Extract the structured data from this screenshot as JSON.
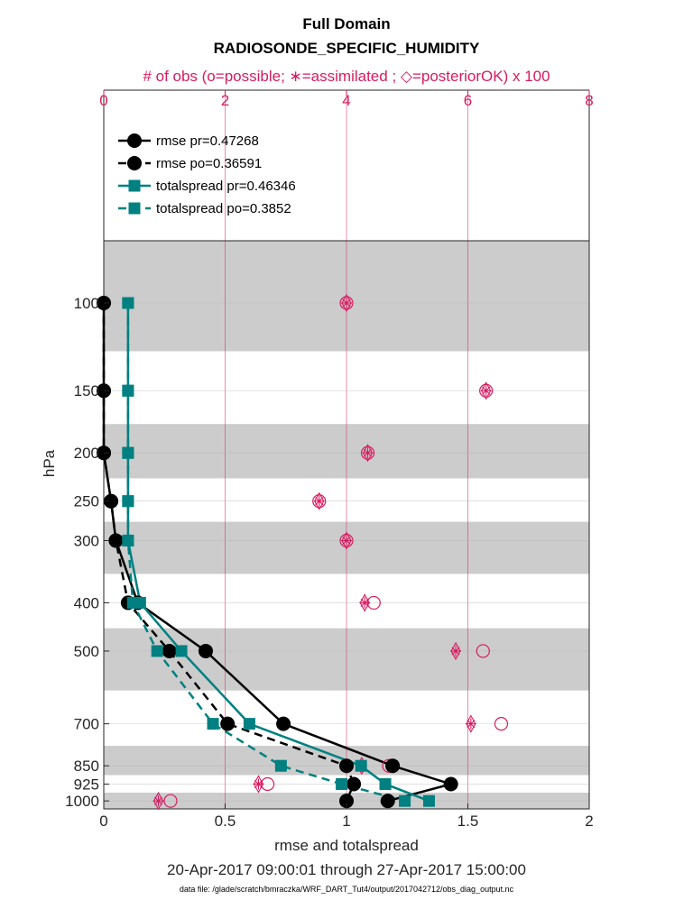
{
  "chart_data": {
    "type": "line",
    "title": "Full Domain",
    "subtitle": "RADIOSONDE_SPECIFIC_HUMIDITY",
    "top_axis_label": "# of obs (o=possible; ∗=assimilated ; ◇=posteriorOK) x 100",
    "xlabel": "rmse and totalspread",
    "ylabel": "hPa",
    "date_range": "20-Apr-2017 09:00:01 through 27-Apr-2017 15:00:00",
    "footer": "data file: /glade/scratch/bmraczka/WRF_DART_Tut4/output/2017042712/obs_diag_output.nc",
    "xlim": [
      0,
      2
    ],
    "x_ticks": [
      "0",
      "0.5",
      "1",
      "1.5",
      "2"
    ],
    "top_xlim": [
      0,
      8
    ],
    "top_ticks": [
      "0",
      "2",
      "4",
      "6",
      "8"
    ],
    "y_scale": "log",
    "y_ticks": [
      "100",
      "150",
      "200",
      "250",
      "300",
      "400",
      "500",
      "700",
      "850",
      "925",
      "1000"
    ],
    "levels": [
      100,
      150,
      200,
      250,
      300,
      400,
      500,
      700,
      850,
      925,
      1000
    ],
    "layer_edges": [
      75,
      125,
      175,
      225,
      275,
      350,
      450,
      600,
      775,
      887.5,
      962.5,
      1037.5
    ],
    "legend_position": "top-left",
    "colors": {
      "rmse": "#000000",
      "spread": "#008080",
      "obs": "#d81b60",
      "band": "#cccccc",
      "grid": "#b0b0b0"
    },
    "series": [
      {
        "name": "rmse pr=0.47268",
        "style": "solid",
        "marker": "circle",
        "color": "#000000",
        "values": [
          0.0,
          0.0,
          0.0,
          0.03,
          0.05,
          0.14,
          0.42,
          0.74,
          1.19,
          1.43,
          1.17
        ]
      },
      {
        "name": "rmse po=0.36591",
        "style": "dashed",
        "marker": "circle",
        "color": "#000000",
        "values": [
          0.0,
          0.0,
          0.0,
          0.03,
          0.05,
          0.1,
          0.27,
          0.51,
          1.0,
          1.03,
          1.0
        ]
      },
      {
        "name": "totalspread pr=0.46346",
        "style": "solid",
        "marker": "square",
        "color": "#008080",
        "values": [
          0.1,
          0.1,
          0.1,
          0.1,
          0.1,
          0.15,
          0.32,
          0.6,
          1.06,
          1.16,
          1.34
        ]
      },
      {
        "name": "totalspread po=0.3852",
        "style": "dashed",
        "marker": "square",
        "color": "#008080",
        "values": [
          0.1,
          0.1,
          0.1,
          0.1,
          0.1,
          0.12,
          0.22,
          0.45,
          0.73,
          0.98,
          1.24
        ]
      }
    ],
    "obs_counts_x100": {
      "possible": [
        4.0,
        6.3,
        4.35,
        3.55,
        4.0,
        4.45,
        6.25,
        6.55,
        4.7,
        2.7,
        1.1
      ],
      "assimilated": [
        4.0,
        6.3,
        4.35,
        3.55,
        4.0,
        4.3,
        5.8,
        6.05,
        4.25,
        2.55,
        0.9
      ],
      "posteriorOK": [
        4.0,
        6.3,
        4.35,
        3.55,
        4.0,
        4.3,
        5.8,
        6.05,
        4.25,
        2.55,
        0.9
      ]
    }
  }
}
